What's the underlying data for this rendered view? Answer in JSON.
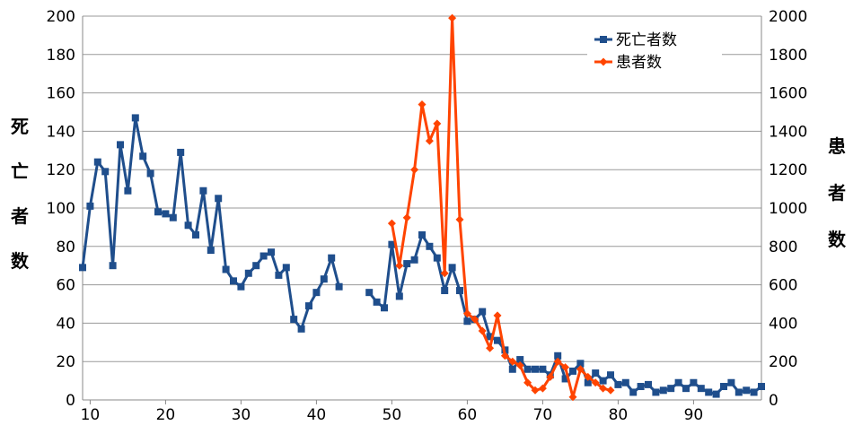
{
  "chart_data": {
    "type": "line",
    "title": "",
    "xlabel": "",
    "ylabel_left": "死亡者数",
    "ylabel_right": "患者数",
    "xlim": [
      9,
      99
    ],
    "ylim_left": [
      0,
      200
    ],
    "ylim_right": [
      0,
      2000
    ],
    "x_ticks": [
      10,
      20,
      30,
      40,
      50,
      60,
      70,
      80,
      90
    ],
    "y_ticks_left": [
      0,
      20,
      40,
      60,
      80,
      100,
      120,
      140,
      160,
      180,
      200
    ],
    "y_ticks_right": [
      0,
      200,
      400,
      600,
      800,
      1000,
      1200,
      1400,
      1600,
      1800,
      2000
    ],
    "grid": "horizontal",
    "legend_position": "top-right",
    "series": [
      {
        "name": "死亡者数",
        "axis": "left",
        "color": "#1f4e8c",
        "marker": "square",
        "points": [
          [
            9,
            69
          ],
          [
            10,
            101
          ],
          [
            11,
            124
          ],
          [
            12,
            119
          ],
          [
            13,
            70
          ],
          [
            14,
            133
          ],
          [
            15,
            109
          ],
          [
            16,
            147
          ],
          [
            17,
            127
          ],
          [
            18,
            118
          ],
          [
            19,
            98
          ],
          [
            20,
            97
          ],
          [
            21,
            95
          ],
          [
            22,
            129
          ],
          [
            23,
            91
          ],
          [
            24,
            86
          ],
          [
            25,
            109
          ],
          [
            26,
            78
          ],
          [
            27,
            105
          ],
          [
            28,
            68
          ],
          [
            29,
            62
          ],
          [
            30,
            59
          ],
          [
            31,
            66
          ],
          [
            32,
            70
          ],
          [
            33,
            75
          ],
          [
            34,
            77
          ],
          [
            35,
            65
          ],
          [
            36,
            69
          ],
          [
            37,
            42
          ],
          [
            38,
            37
          ],
          [
            39,
            49
          ],
          [
            40,
            56
          ],
          [
            41,
            63
          ],
          [
            42,
            74
          ],
          [
            43,
            59
          ],
          null,
          [
            47,
            56
          ],
          [
            48,
            51
          ],
          [
            49,
            48
          ],
          [
            50,
            81
          ],
          [
            51,
            54
          ],
          [
            52,
            71
          ],
          [
            53,
            73
          ],
          [
            54,
            86
          ],
          [
            55,
            80
          ],
          [
            56,
            74
          ],
          [
            57,
            57
          ],
          [
            58,
            69
          ],
          [
            59,
            57
          ],
          [
            60,
            41
          ],
          [
            61,
            42
          ],
          [
            62,
            46
          ],
          [
            63,
            33
          ],
          [
            64,
            31
          ],
          [
            65,
            26
          ],
          [
            66,
            16
          ],
          [
            67,
            21
          ],
          [
            68,
            16
          ],
          [
            69,
            16
          ],
          [
            70,
            16
          ],
          [
            71,
            13
          ],
          [
            72,
            23
          ],
          [
            73,
            11
          ],
          [
            74,
            15
          ],
          [
            75,
            19
          ],
          [
            76,
            9
          ],
          [
            77,
            14
          ],
          [
            78,
            10
          ],
          [
            79,
            13
          ],
          [
            80,
            8
          ],
          [
            81,
            9
          ],
          [
            82,
            4
          ],
          [
            83,
            7
          ],
          [
            84,
            8
          ],
          [
            85,
            4
          ],
          [
            86,
            5
          ],
          [
            87,
            6
          ],
          [
            88,
            9
          ],
          [
            89,
            6
          ],
          [
            90,
            9
          ],
          [
            91,
            6
          ],
          [
            92,
            4
          ],
          [
            93,
            3
          ],
          [
            94,
            7
          ],
          [
            95,
            9
          ],
          [
            96,
            4
          ],
          [
            97,
            5
          ],
          [
            98,
            4
          ],
          [
            99,
            7
          ]
        ]
      },
      {
        "name": "患者数",
        "axis": "right",
        "color": "#ff4400",
        "marker": "diamond",
        "points": [
          [
            50,
            920
          ],
          [
            51,
            700
          ],
          [
            52,
            950
          ],
          [
            53,
            1200
          ],
          [
            54,
            1540
          ],
          [
            55,
            1350
          ],
          [
            56,
            1440
          ],
          [
            57,
            660
          ],
          [
            58,
            1990
          ],
          [
            59,
            940
          ],
          [
            60,
            450
          ],
          [
            61,
            420
          ],
          [
            62,
            360
          ],
          [
            63,
            270
          ],
          [
            64,
            440
          ],
          [
            65,
            230
          ],
          [
            66,
            200
          ],
          [
            67,
            180
          ],
          [
            68,
            90
          ],
          [
            69,
            50
          ],
          [
            70,
            60
          ],
          [
            71,
            120
          ],
          [
            72,
            200
          ],
          [
            73,
            170
          ],
          [
            74,
            15
          ],
          [
            75,
            160
          ],
          [
            76,
            120
          ],
          [
            77,
            90
          ],
          [
            78,
            60
          ],
          [
            79,
            50
          ]
        ]
      }
    ]
  }
}
